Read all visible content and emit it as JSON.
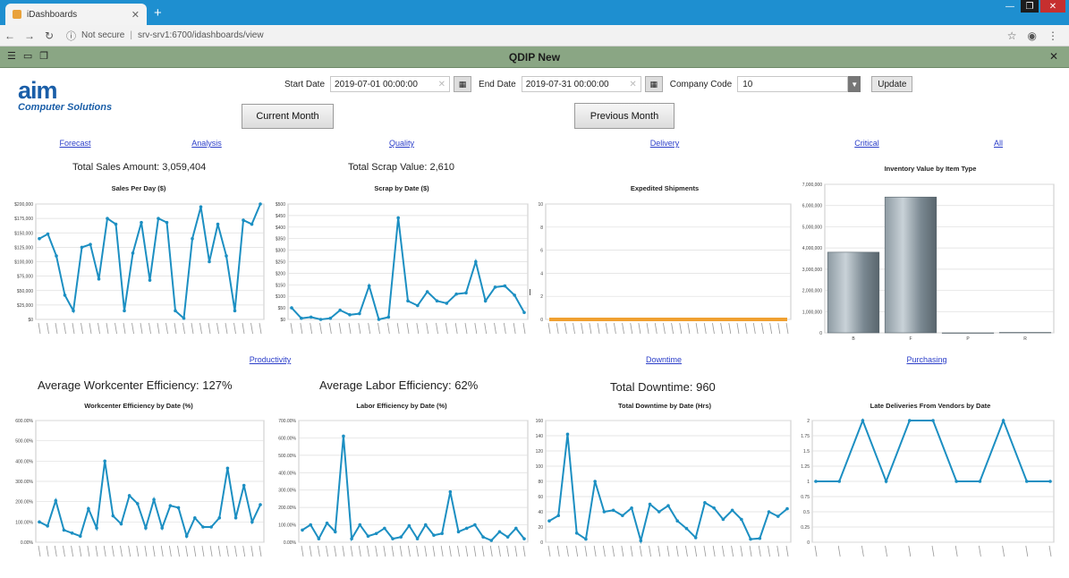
{
  "browser": {
    "tab_title": "iDashboards",
    "address_security": "Not secure",
    "url": "srv-srv1:6700/idashboards/view"
  },
  "app": {
    "title": "QDIP New"
  },
  "logo": {
    "name": "aim",
    "tagline": "Computer Solutions"
  },
  "filters": {
    "start_label": "Start Date",
    "start_value": "2019-07-01 00:00:00",
    "end_label": "End Date",
    "end_value": "2019-07-31 00:00:00",
    "company_label": "Company Code",
    "company_value": "10",
    "update_label": "Update"
  },
  "buttons": {
    "current_month": "Current Month",
    "previous_month": "Previous Month"
  },
  "links": {
    "forecast": "Forecast",
    "analysis": "Analysis",
    "quality": "Quality",
    "delivery": "Delivery",
    "critical": "Critical",
    "all": "All",
    "productivity": "Productivity",
    "downtime": "Downtime",
    "purchasing": "Purchasing"
  },
  "kpis": {
    "total_sales": "Total Sales Amount: 3,059,404",
    "total_scrap": "Total Scrap Value: 2,610",
    "avg_workcenter": "Average Workcenter Efficiency: 127%",
    "avg_labor": "Average Labor Efficiency: 62%",
    "total_downtime": "Total Downtime: 960"
  },
  "colors": {
    "line": "#1c8fc2",
    "grid": "#dddddd",
    "expedited": "#f0a030"
  },
  "chart_data": [
    {
      "id": "sales",
      "type": "line",
      "title": "Sales Per Day ($)",
      "ylim": [
        0,
        200000
      ],
      "yticks": [
        "$0",
        "$25,000",
        "$50,000",
        "$75,000",
        "$100,000",
        "$125,000",
        "$150,000",
        "$175,000",
        "$200,000"
      ],
      "values": [
        140000,
        148000,
        110000,
        42000,
        15000,
        125000,
        130000,
        70000,
        175000,
        165000,
        15000,
        115000,
        168000,
        68000,
        175000,
        168000,
        15000,
        2000,
        140000,
        195000,
        100000,
        165000,
        110000,
        15000,
        172000,
        165000,
        200000
      ]
    },
    {
      "id": "scrap",
      "type": "line",
      "title": "Scrap by Date ($)",
      "ylim": [
        0,
        500
      ],
      "yticks": [
        "$0",
        "$50",
        "$100",
        "$150",
        "$200",
        "$250",
        "$300",
        "$350",
        "$400",
        "$450",
        "$500"
      ],
      "values": [
        50,
        5,
        10,
        0,
        5,
        40,
        20,
        25,
        145,
        0,
        10,
        440,
        80,
        60,
        120,
        80,
        70,
        110,
        115,
        250,
        80,
        140,
        145,
        105,
        30
      ]
    },
    {
      "id": "expedited",
      "type": "line",
      "title": "Expedited Shipments",
      "ylim": [
        0,
        10
      ],
      "yticks": [
        "0",
        "2",
        "4",
        "6",
        "8",
        "10"
      ],
      "values": [
        0,
        0,
        0,
        0,
        0,
        0,
        0,
        0,
        0,
        0,
        0,
        0,
        0,
        0,
        0,
        0,
        0,
        0,
        0,
        0,
        0,
        0,
        0,
        0,
        0,
        0,
        0,
        0,
        0,
        0
      ]
    },
    {
      "id": "inventory",
      "type": "bar",
      "title": "Inventory Value by Item Type",
      "ylim": [
        0,
        7000000
      ],
      "yticks": [
        "0",
        "1,000,000",
        "2,000,000",
        "3,000,000",
        "4,000,000",
        "5,000,000",
        "6,000,000",
        "7,000,000"
      ],
      "categories": [
        "B",
        "F",
        "P",
        "R"
      ],
      "values": [
        3800000,
        6400000,
        0,
        20000
      ]
    },
    {
      "id": "workcenter",
      "type": "line",
      "title": "Workcenter Efficiency by Date (%)",
      "ylim": [
        0,
        600
      ],
      "yticks": [
        "0.00%",
        "100.00%",
        "200.00%",
        "300.00%",
        "400.00%",
        "500.00%",
        "600.00%"
      ],
      "values": [
        100,
        80,
        205,
        60,
        45,
        30,
        165,
        70,
        400,
        130,
        90,
        230,
        190,
        70,
        210,
        70,
        180,
        170,
        30,
        120,
        75,
        75,
        120,
        365,
        120,
        280,
        100,
        185
      ]
    },
    {
      "id": "labor",
      "type": "line",
      "title": "Labor Efficiency by Date (%)",
      "ylim": [
        0,
        700
      ],
      "yticks": [
        "0.00%",
        "100.00%",
        "200.00%",
        "300.00%",
        "400.00%",
        "500.00%",
        "600.00%",
        "700.00%"
      ],
      "values": [
        70,
        100,
        20,
        110,
        60,
        610,
        20,
        100,
        35,
        50,
        80,
        20,
        30,
        95,
        20,
        100,
        40,
        50,
        290,
        60,
        80,
        100,
        30,
        10,
        60,
        30,
        80,
        20
      ]
    },
    {
      "id": "downtime",
      "type": "line",
      "title": "Total Downtime by Date (Hrs)",
      "ylim": [
        0,
        160
      ],
      "yticks": [
        "0",
        "20",
        "40",
        "60",
        "80",
        "100",
        "120",
        "140",
        "160"
      ],
      "values": [
        28,
        35,
        142,
        12,
        4,
        80,
        40,
        42,
        35,
        45,
        2,
        50,
        40,
        48,
        28,
        18,
        6,
        52,
        45,
        30,
        42,
        30,
        4,
        5,
        40,
        34,
        44
      ]
    },
    {
      "id": "late",
      "type": "line",
      "title": "Late Deliveries From Vendors by Date",
      "ylim": [
        0,
        2
      ],
      "yticks": [
        "0",
        "0.25",
        "0.5",
        "0.75",
        "1",
        "1.25",
        "1.5",
        "1.75",
        "2"
      ],
      "values": [
        1,
        1,
        2,
        1,
        2,
        2,
        1,
        1,
        2,
        1,
        1
      ]
    }
  ]
}
